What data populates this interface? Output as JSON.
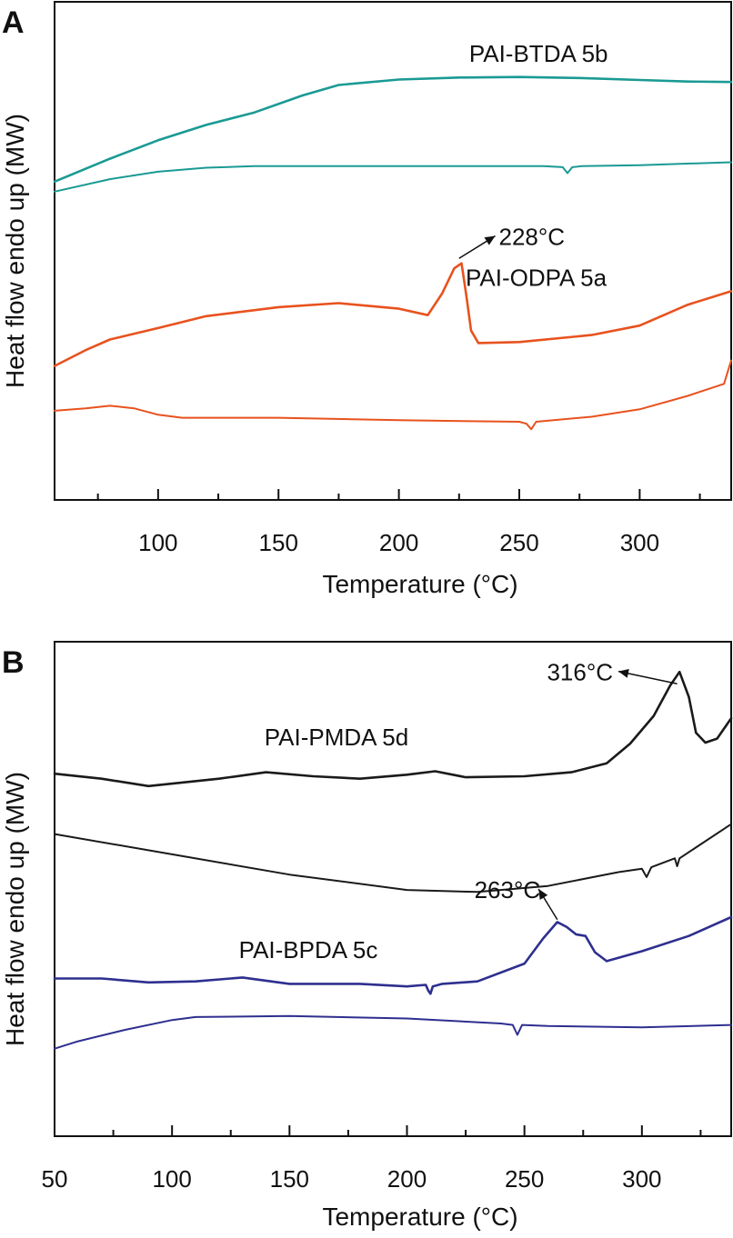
{
  "chart_data": [
    {
      "type": "line",
      "panel": "A",
      "xlabel": "Temperature (°C)",
      "ylabel": "Heat flow endo up (MW)",
      "xlim": [
        57,
        338
      ],
      "ylim": [
        0,
        100
      ],
      "xticks": [
        100,
        150,
        200,
        250,
        300
      ],
      "xtick_labels": [
        "100",
        "150",
        "200",
        "250",
        "300"
      ],
      "grid": false,
      "series": [
        {
          "name": "PAI-BTDA 5b (heat 1)",
          "color": "#1a9a94",
          "x": [
            57,
            80,
            100,
            120,
            140,
            160,
            175,
            200,
            225,
            250,
            275,
            300,
            320,
            338
          ],
          "y": [
            63.9,
            68.5,
            72.2,
            75.3,
            77.8,
            81.2,
            83.3,
            84.4,
            84.8,
            84.9,
            84.7,
            84.3,
            84.0,
            83.9
          ]
        },
        {
          "name": "PAI-BTDA 5b (heat 2)",
          "color": "#1a9a94",
          "x": [
            57,
            80,
            100,
            120,
            140,
            200,
            260,
            268,
            270,
            272,
            276,
            300,
            338
          ],
          "y": [
            61.9,
            64.4,
            65.9,
            66.7,
            67.0,
            67.0,
            67.0,
            66.8,
            65.6,
            66.8,
            67.0,
            67.2,
            67.8
          ]
        },
        {
          "name": "PAI-ODPA 5a (heat 1)",
          "color": "#e8521e",
          "x": [
            57,
            70,
            80,
            100,
            120,
            150,
            175,
            200,
            212,
            218,
            223,
            226,
            228,
            230,
            233,
            250,
            280,
            300,
            320,
            338
          ],
          "y": [
            26.9,
            30.1,
            32.2,
            34.5,
            36.9,
            38.7,
            39.5,
            38.4,
            37.1,
            41.5,
            46.5,
            47.5,
            41.0,
            34.0,
            31.5,
            31.7,
            33.1,
            35.0,
            39.2,
            41.9
          ]
        },
        {
          "name": "PAI-ODPA 5a (heat 2)",
          "color": "#e8521e",
          "x": [
            57,
            70,
            80,
            90,
            100,
            110,
            150,
            200,
            250,
            253,
            255,
            257,
            280,
            300,
            320,
            335,
            338
          ],
          "y": [
            17.9,
            18.4,
            18.9,
            18.4,
            17.1,
            16.5,
            16.5,
            16.0,
            15.7,
            15.3,
            14.2,
            15.7,
            16.7,
            18.2,
            20.9,
            23.3,
            28.0
          ]
        }
      ],
      "annotations": [
        {
          "text": "228°C",
          "x": 228,
          "y": 54
        }
      ],
      "labels": [
        {
          "text": "PAI-BTDA 5b",
          "x": 258,
          "y": 88
        },
        {
          "text": "PAI-ODPA 5a",
          "x": 257,
          "y": 43
        }
      ]
    },
    {
      "type": "line",
      "panel": "B",
      "xlabel": "Temperature (°C)",
      "ylabel": "Heat flow endo up (MW)",
      "xlim": [
        50,
        338
      ],
      "ylim": [
        0,
        100
      ],
      "xticks": [
        50,
        100,
        150,
        200,
        250,
        300
      ],
      "xtick_labels": [
        "50",
        "100",
        "150",
        "200",
        "250",
        "300"
      ],
      "grid": false,
      "series": [
        {
          "name": "PAI-PMDA 5d (heat 1)",
          "color": "#1a1a1a",
          "x": [
            50,
            70,
            90,
            120,
            140,
            160,
            180,
            200,
            212,
            225,
            250,
            270,
            285,
            295,
            305,
            312,
            316,
            320,
            323,
            327,
            332,
            338
          ],
          "y": [
            73.3,
            72.3,
            70.8,
            72.3,
            73.6,
            72.8,
            72.3,
            73.1,
            73.8,
            72.6,
            72.8,
            73.6,
            75.4,
            79.4,
            85.0,
            91.1,
            93.9,
            88.8,
            81.6,
            79.6,
            80.4,
            84.5
          ]
        },
        {
          "name": "PAI-PMDA 5d (heat 2)",
          "color": "#1a1a1a",
          "x": [
            50,
            100,
            150,
            200,
            230,
            260,
            290,
            300,
            302,
            304,
            314,
            315,
            316,
            338
          ],
          "y": [
            61.1,
            57.0,
            52.9,
            49.8,
            49.4,
            50.6,
            53.4,
            54.1,
            52.4,
            54.4,
            56.2,
            54.6,
            56.2,
            63.1
          ]
        },
        {
          "name": "PAI-BPDA 5c (heat 1)",
          "color": "#2e2f8f",
          "x": [
            50,
            70,
            90,
            110,
            130,
            150,
            180,
            200,
            208,
            209,
            210,
            211,
            215,
            230,
            250,
            258,
            264,
            268,
            272,
            276,
            280,
            285,
            300,
            320,
            338
          ],
          "y": [
            31.9,
            31.9,
            31.1,
            31.3,
            32.1,
            30.8,
            30.8,
            30.3,
            30.6,
            29.5,
            28.8,
            30.3,
            30.8,
            31.3,
            34.9,
            40.0,
            43.3,
            42.3,
            40.8,
            40.5,
            37.2,
            35.4,
            37.4,
            40.5,
            44.3
          ]
        },
        {
          "name": "PAI-BPDA 5c (heat 2)",
          "color": "#2e2f8f",
          "x": [
            50,
            60,
            80,
            100,
            110,
            150,
            200,
            240,
            245,
            247,
            249,
            260,
            300,
            338
          ],
          "y": [
            17.7,
            19.2,
            21.5,
            23.5,
            24.1,
            24.3,
            23.8,
            22.8,
            22.5,
            20.5,
            22.5,
            22.3,
            22.0,
            22.5
          ]
        }
      ],
      "annotations": [
        {
          "text": "316°C",
          "x": 285,
          "y": 93
        },
        {
          "text": "263°C",
          "x": 248,
          "y": 50
        }
      ],
      "labels": [
        {
          "text": "PAI-PMDA 5d",
          "x": 170,
          "y": 79
        },
        {
          "text": "PAI-BPDA 5c",
          "x": 158,
          "y": 36
        }
      ]
    }
  ]
}
